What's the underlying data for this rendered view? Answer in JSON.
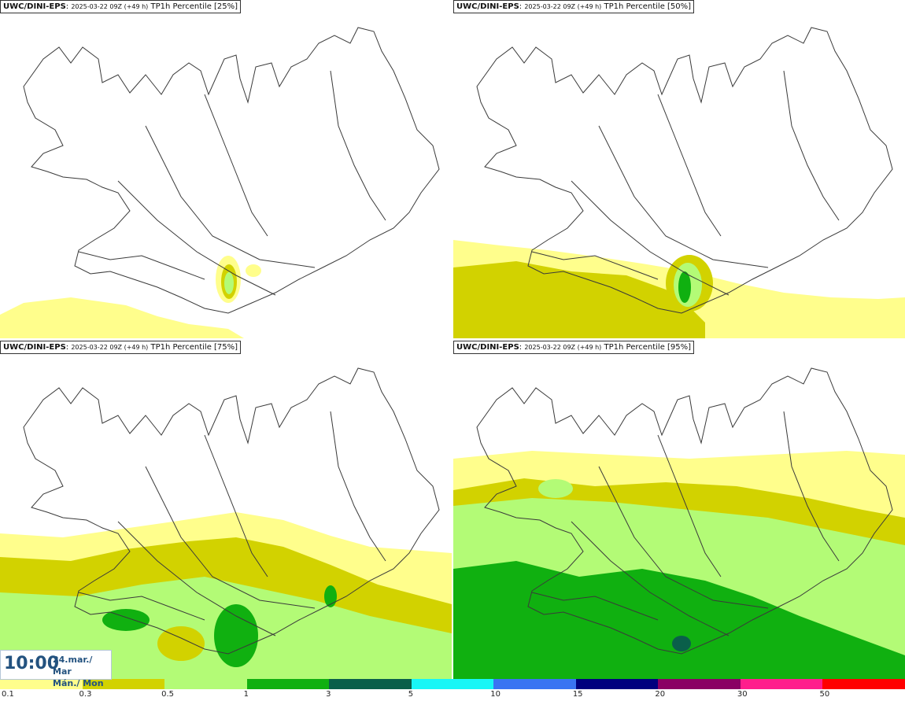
{
  "panels": [
    {
      "model": "UWC/DINI-EPS",
      "run": "2025-03-22 09Z (+49 h)",
      "product": "TP1h Percentile [25%]"
    },
    {
      "model": "UWC/DINI-EPS",
      "run": "2025-03-22 09Z (+49 h)",
      "product": "TP1h Percentile [50%]"
    },
    {
      "model": "UWC/DINI-EPS",
      "run": "2025-03-22 09Z (+49 h)",
      "product": "TP1h Percentile [75%]"
    },
    {
      "model": "UWC/DINI-EPS",
      "run": "2025-03-22 09Z (+49 h)",
      "product": "TP1h Percentile [95%]"
    }
  ],
  "separator": ": ",
  "time": {
    "clock": "10:00",
    "date_line1": "24.mar./ Mar",
    "date_line2": "Mán./ Mon"
  },
  "legend": {
    "ticks": [
      "0.1",
      "0.3",
      "0.5",
      "1",
      "3",
      "5",
      "10",
      "15",
      "20",
      "30",
      "50"
    ],
    "colors": [
      "#fffe8c",
      "#d2d200",
      "#b3fb76",
      "#10b010",
      "#0a5f4a",
      "#18f6f6",
      "#3a74f2",
      "#00007e",
      "#8a0064",
      "#ff1e8c",
      "#ff0000"
    ]
  },
  "map_colors": {
    "coast": "#3a3a3a",
    "light_yellow": "#fffe8c",
    "olive": "#d2d200",
    "light_green": "#b3fb76",
    "green": "#10b010",
    "dark_green": "#0a5f4a"
  }
}
